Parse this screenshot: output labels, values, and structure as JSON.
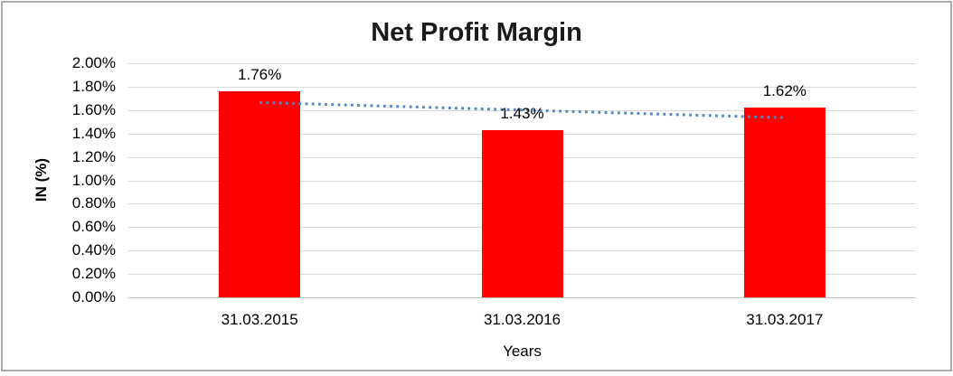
{
  "chart_data": {
    "type": "bar",
    "title": "Net Profit Margin",
    "xlabel": "Years",
    "ylabel": "IN (%)",
    "categories": [
      "31.03.2015",
      "31.03.2016",
      "31.03.2017"
    ],
    "values": [
      1.76,
      1.43,
      1.62
    ],
    "data_labels": [
      "1.76%",
      "1.43%",
      "1.62%"
    ],
    "ylim": [
      0,
      2.0
    ],
    "ytick_step": 0.2,
    "ytick_labels": [
      "2.00%",
      "1.80%",
      "1.60%",
      "1.40%",
      "1.20%",
      "1.00%",
      "0.80%",
      "0.60%",
      "0.40%",
      "0.20%",
      "0.00%"
    ],
    "grid": true,
    "legend": "none",
    "bar_color": "#ff0000",
    "gridline_color": "#d9d9d9",
    "axis_line_color": "#bfbfbf",
    "trendline": {
      "style": "dotted",
      "color": "#4f86c6",
      "start_value": 1.665,
      "end_value": 1.535
    }
  }
}
